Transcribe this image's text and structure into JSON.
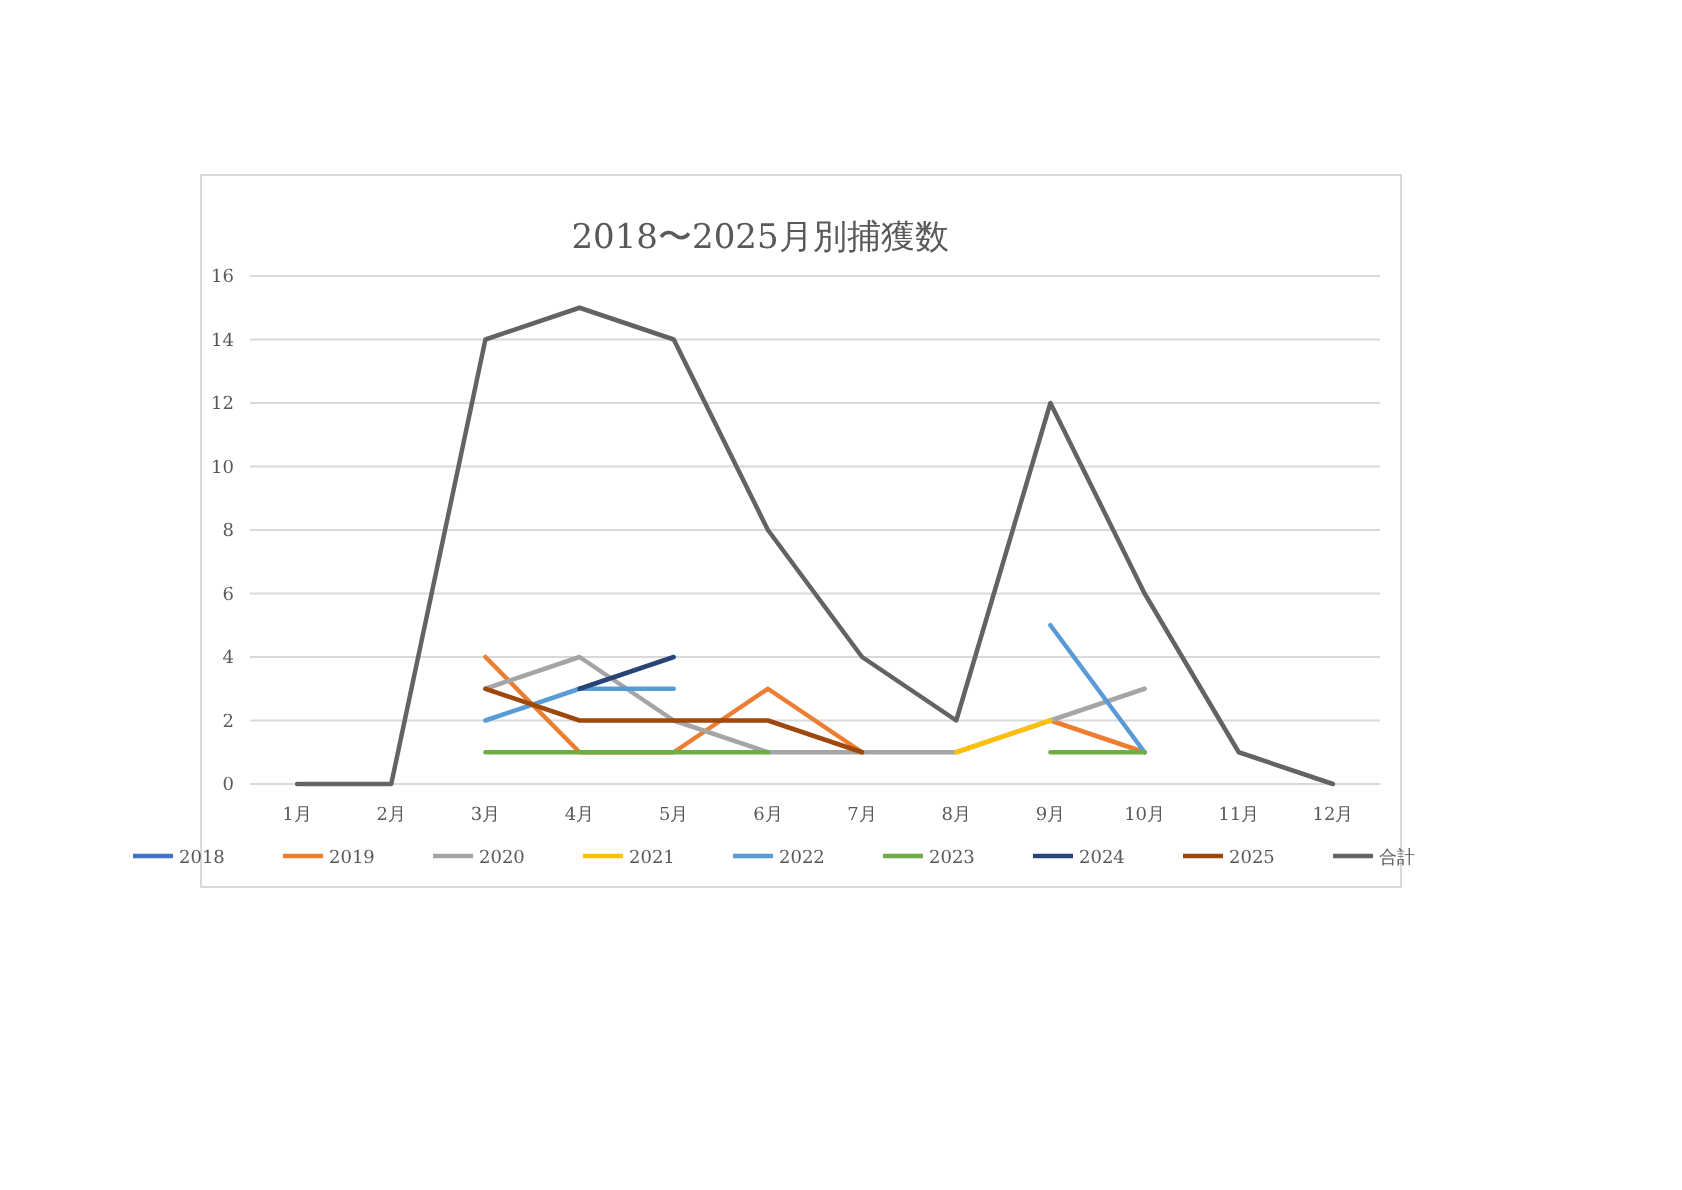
{
  "chart_data": {
    "type": "line",
    "title": "2018〜2025月別捕獲数",
    "categories": [
      "1月",
      "2月",
      "3月",
      "4月",
      "5月",
      "6月",
      "7月",
      "8月",
      "9月",
      "10月",
      "11月",
      "12月"
    ],
    "series": [
      {
        "name": "2018",
        "color": "#4472c4",
        "values": [
          null,
          null,
          null,
          null,
          null,
          null,
          null,
          null,
          null,
          null,
          null,
          null
        ]
      },
      {
        "name": "2019",
        "color": "#ed7d31",
        "values": [
          null,
          null,
          4,
          1,
          1,
          3,
          1,
          null,
          2,
          1,
          null,
          null
        ]
      },
      {
        "name": "2020",
        "color": "#a5a5a5",
        "values": [
          null,
          null,
          3,
          4,
          2,
          1,
          1,
          1,
          2,
          3,
          null,
          null
        ]
      },
      {
        "name": "2021",
        "color": "#ffc000",
        "values": [
          null,
          null,
          null,
          null,
          null,
          null,
          null,
          1,
          2,
          null,
          null,
          null
        ]
      },
      {
        "name": "2022",
        "color": "#5b9bd5",
        "values": [
          null,
          null,
          2,
          3,
          3,
          null,
          null,
          null,
          5,
          1,
          null,
          null
        ]
      },
      {
        "name": "2023",
        "color": "#70ad47",
        "values": [
          null,
          null,
          1,
          1,
          1,
          1,
          null,
          null,
          1,
          1,
          null,
          null
        ]
      },
      {
        "name": "2024",
        "color": "#264478",
        "values": [
          null,
          null,
          null,
          3,
          4,
          null,
          null,
          null,
          null,
          null,
          null,
          null
        ]
      },
      {
        "name": "2025",
        "color": "#9e480e",
        "values": [
          null,
          null,
          3,
          2,
          2,
          2,
          1,
          null,
          null,
          null,
          null,
          null
        ]
      },
      {
        "name": "合計",
        "color": "#636363",
        "values": [
          0,
          0,
          14,
          15,
          14,
          8,
          4,
          2,
          12,
          6,
          1,
          0
        ]
      }
    ],
    "ylim": [
      0,
      16
    ],
    "yticks": [
      0,
      2,
      4,
      6,
      8,
      10,
      12,
      14,
      16
    ],
    "grid": "y",
    "legend": "bottom"
  }
}
